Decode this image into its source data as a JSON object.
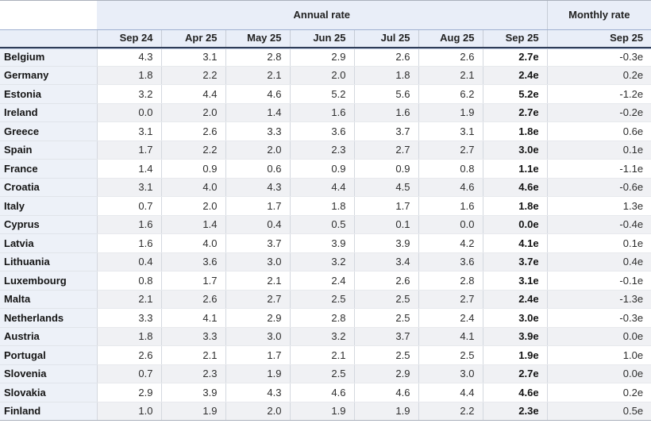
{
  "chart_data": {
    "type": "table",
    "column_groups": [
      {
        "label": "Annual rate",
        "span": 7
      },
      {
        "label": "Monthly rate",
        "span": 1
      }
    ],
    "annual_columns": [
      "Sep 24",
      "Apr 25",
      "May 25",
      "Jun 25",
      "Jul 25",
      "Aug 25",
      "Sep 25"
    ],
    "monthly_column": "Sep 25",
    "rows": [
      {
        "country": "Belgium",
        "annual": [
          "4.3",
          "3.1",
          "2.8",
          "2.9",
          "2.6",
          "2.6",
          "2.7e"
        ],
        "monthly": "-0.3e"
      },
      {
        "country": "Germany",
        "annual": [
          "1.8",
          "2.2",
          "2.1",
          "2.0",
          "1.8",
          "2.1",
          "2.4e"
        ],
        "monthly": "0.2e"
      },
      {
        "country": "Estonia",
        "annual": [
          "3.2",
          "4.4",
          "4.6",
          "5.2",
          "5.6",
          "6.2",
          "5.2e"
        ],
        "monthly": "-1.2e"
      },
      {
        "country": "Ireland",
        "annual": [
          "0.0",
          "2.0",
          "1.4",
          "1.6",
          "1.6",
          "1.9",
          "2.7e"
        ],
        "monthly": "-0.2e"
      },
      {
        "country": "Greece",
        "annual": [
          "3.1",
          "2.6",
          "3.3",
          "3.6",
          "3.7",
          "3.1",
          "1.8e"
        ],
        "monthly": "0.6e"
      },
      {
        "country": "Spain",
        "annual": [
          "1.7",
          "2.2",
          "2.0",
          "2.3",
          "2.7",
          "2.7",
          "3.0e"
        ],
        "monthly": "0.1e"
      },
      {
        "country": "France",
        "annual": [
          "1.4",
          "0.9",
          "0.6",
          "0.9",
          "0.9",
          "0.8",
          "1.1e"
        ],
        "monthly": "-1.1e"
      },
      {
        "country": "Croatia",
        "annual": [
          "3.1",
          "4.0",
          "4.3",
          "4.4",
          "4.5",
          "4.6",
          "4.6e"
        ],
        "monthly": "-0.6e"
      },
      {
        "country": "Italy",
        "annual": [
          "0.7",
          "2.0",
          "1.7",
          "1.8",
          "1.7",
          "1.6",
          "1.8e"
        ],
        "monthly": "1.3e"
      },
      {
        "country": "Cyprus",
        "annual": [
          "1.6",
          "1.4",
          "0.4",
          "0.5",
          "0.1",
          "0.0",
          "0.0e"
        ],
        "monthly": "-0.4e"
      },
      {
        "country": "Latvia",
        "annual": [
          "1.6",
          "4.0",
          "3.7",
          "3.9",
          "3.9",
          "4.2",
          "4.1e"
        ],
        "monthly": "0.1e"
      },
      {
        "country": "Lithuania",
        "annual": [
          "0.4",
          "3.6",
          "3.0",
          "3.2",
          "3.4",
          "3.6",
          "3.7e"
        ],
        "monthly": "0.4e"
      },
      {
        "country": "Luxembourg",
        "annual": [
          "0.8",
          "1.7",
          "2.1",
          "2.4",
          "2.6",
          "2.8",
          "3.1e"
        ],
        "monthly": "-0.1e"
      },
      {
        "country": "Malta",
        "annual": [
          "2.1",
          "2.6",
          "2.7",
          "2.5",
          "2.5",
          "2.7",
          "2.4e"
        ],
        "monthly": "-1.3e"
      },
      {
        "country": "Netherlands",
        "annual": [
          "3.3",
          "4.1",
          "2.9",
          "2.8",
          "2.5",
          "2.4",
          "3.0e"
        ],
        "monthly": "-0.3e"
      },
      {
        "country": "Austria",
        "annual": [
          "1.8",
          "3.3",
          "3.0",
          "3.2",
          "3.7",
          "4.1",
          "3.9e"
        ],
        "monthly": "0.0e"
      },
      {
        "country": "Portugal",
        "annual": [
          "2.6",
          "2.1",
          "1.7",
          "2.1",
          "2.5",
          "2.5",
          "1.9e"
        ],
        "monthly": "1.0e"
      },
      {
        "country": "Slovenia",
        "annual": [
          "0.7",
          "2.3",
          "1.9",
          "2.5",
          "2.9",
          "3.0",
          "2.7e"
        ],
        "monthly": "0.0e"
      },
      {
        "country": "Slovakia",
        "annual": [
          "2.9",
          "3.9",
          "4.3",
          "4.6",
          "4.6",
          "4.4",
          "4.6e"
        ],
        "monthly": "0.2e"
      },
      {
        "country": "Finland",
        "annual": [
          "1.0",
          "1.9",
          "2.0",
          "1.9",
          "1.9",
          "2.2",
          "2.3e"
        ],
        "monthly": "0.5e"
      }
    ]
  },
  "colors": {
    "header_background": "#e9eef8",
    "country_column_background": "#edf1f8",
    "stripe_row_background": "#f0f1f4",
    "header_blue_separator": "#9fb0d0",
    "header_dark_underline": "#2f3d58",
    "column_separator": "#d4d8df",
    "text": "#222222"
  }
}
